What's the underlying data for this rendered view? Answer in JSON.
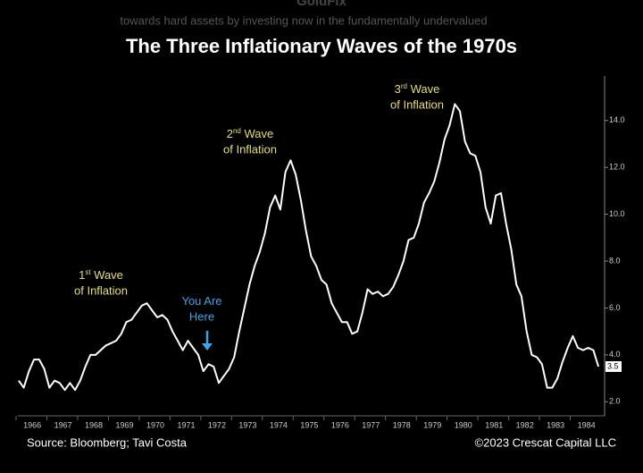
{
  "site_name": "GoldFix",
  "header_text": "towards hard assets by investing now in the fundamentally undervalued",
  "chart_data": {
    "type": "line",
    "title": "The Three Inflationary Waves of the 1970s",
    "source": "Source: Bloomberg; Tavi Costa",
    "copyright": "©2023 Crescat Capital LLC",
    "annotations": [
      {
        "parts": [
          "1",
          "st",
          " Wave"
        ],
        "line2": "of Inflation",
        "color": "#e6df72"
      },
      {
        "parts": [
          "2",
          "nd",
          " Wave"
        ],
        "line2": "of Inflation",
        "color": "#e6df72"
      },
      {
        "parts": [
          "3",
          "rd",
          " Wave"
        ],
        "line2": "of Inflation",
        "color": "#e6df72"
      },
      {
        "parts": [
          "You Are"
        ],
        "line2": "Here",
        "color": "#3ba4e6"
      }
    ],
    "categories": [
      null,
      null,
      null,
      "1966",
      null,
      null,
      null,
      null,
      null,
      "1967",
      null,
      null,
      null,
      null,
      null,
      "1968",
      null,
      null,
      null,
      null,
      null,
      "1969",
      null,
      null,
      null,
      null,
      null,
      "1970",
      null,
      null,
      null,
      null,
      null,
      "1971",
      null,
      null,
      null,
      null,
      null,
      "1972",
      null,
      null,
      null,
      null,
      null,
      "1973",
      null,
      null,
      null,
      null,
      null,
      "1974",
      null,
      null,
      null,
      null,
      null,
      "1975",
      null,
      null,
      null,
      null,
      null,
      "1976",
      null,
      null,
      null,
      null,
      null,
      "1977",
      null,
      null,
      null,
      null,
      null,
      "1978",
      null,
      null,
      null,
      null,
      null,
      "1979",
      null,
      null,
      null,
      null,
      null,
      "1980",
      null,
      null,
      null,
      null,
      null,
      "1981",
      null,
      null,
      null,
      null,
      null,
      "1982",
      null,
      null,
      null,
      null,
      null,
      "1983",
      null,
      null,
      null,
      null,
      null,
      "1984",
      null,
      null
    ],
    "series": [
      {
        "color": "#ffffff",
        "values": [
          2.9,
          2.6,
          3.3,
          3.8,
          3.8,
          3.4,
          2.6,
          2.9,
          2.8,
          2.5,
          2.8,
          2.5,
          2.9,
          3.5,
          4.0,
          4.0,
          4.2,
          4.4,
          4.5,
          4.6,
          4.9,
          5.4,
          5.5,
          5.8,
          6.1,
          6.2,
          5.9,
          5.6,
          5.7,
          5.5,
          5.0,
          4.6,
          4.2,
          4.6,
          4.3,
          4.0,
          3.3,
          3.6,
          3.5,
          2.8,
          3.1,
          3.4,
          3.9,
          5.0,
          6.0,
          7.0,
          7.8,
          8.4,
          9.2,
          10.3,
          10.8,
          10.2,
          11.8,
          12.3,
          11.7,
          10.6,
          9.3,
          8.2,
          7.8,
          7.2,
          7.0,
          6.2,
          5.8,
          5.4,
          5.4,
          4.9,
          5.0,
          5.8,
          6.8,
          6.6,
          6.7,
          6.5,
          6.6,
          6.9,
          7.4,
          8.0,
          8.9,
          9.0,
          9.6,
          10.5,
          10.9,
          11.4,
          12.2,
          13.2,
          13.8,
          14.7,
          14.4,
          13.1,
          12.6,
          12.5,
          11.8,
          10.3,
          9.6,
          10.8,
          10.9,
          9.6,
          8.5,
          7.0,
          6.5,
          5.0,
          4.0,
          3.9,
          3.6,
          2.6,
          2.6,
          3.0,
          3.7,
          4.3,
          4.8,
          4.3,
          4.2,
          4.3,
          4.2,
          3.5
        ]
      }
    ],
    "ylim": [
      1.4,
      15.9
    ],
    "yticks": [
      {
        "value": 2,
        "label": "2.0"
      },
      {
        "value": 4,
        "label": "4.0"
      },
      {
        "value": 6,
        "label": "6.0"
      },
      {
        "value": 8,
        "label": "8.0"
      },
      {
        "value": 10,
        "label": "10.0"
      },
      {
        "value": 12,
        "label": "12.0"
      },
      {
        "value": 14,
        "label": "14.0"
      }
    ],
    "y_axis_side": "right"
  }
}
